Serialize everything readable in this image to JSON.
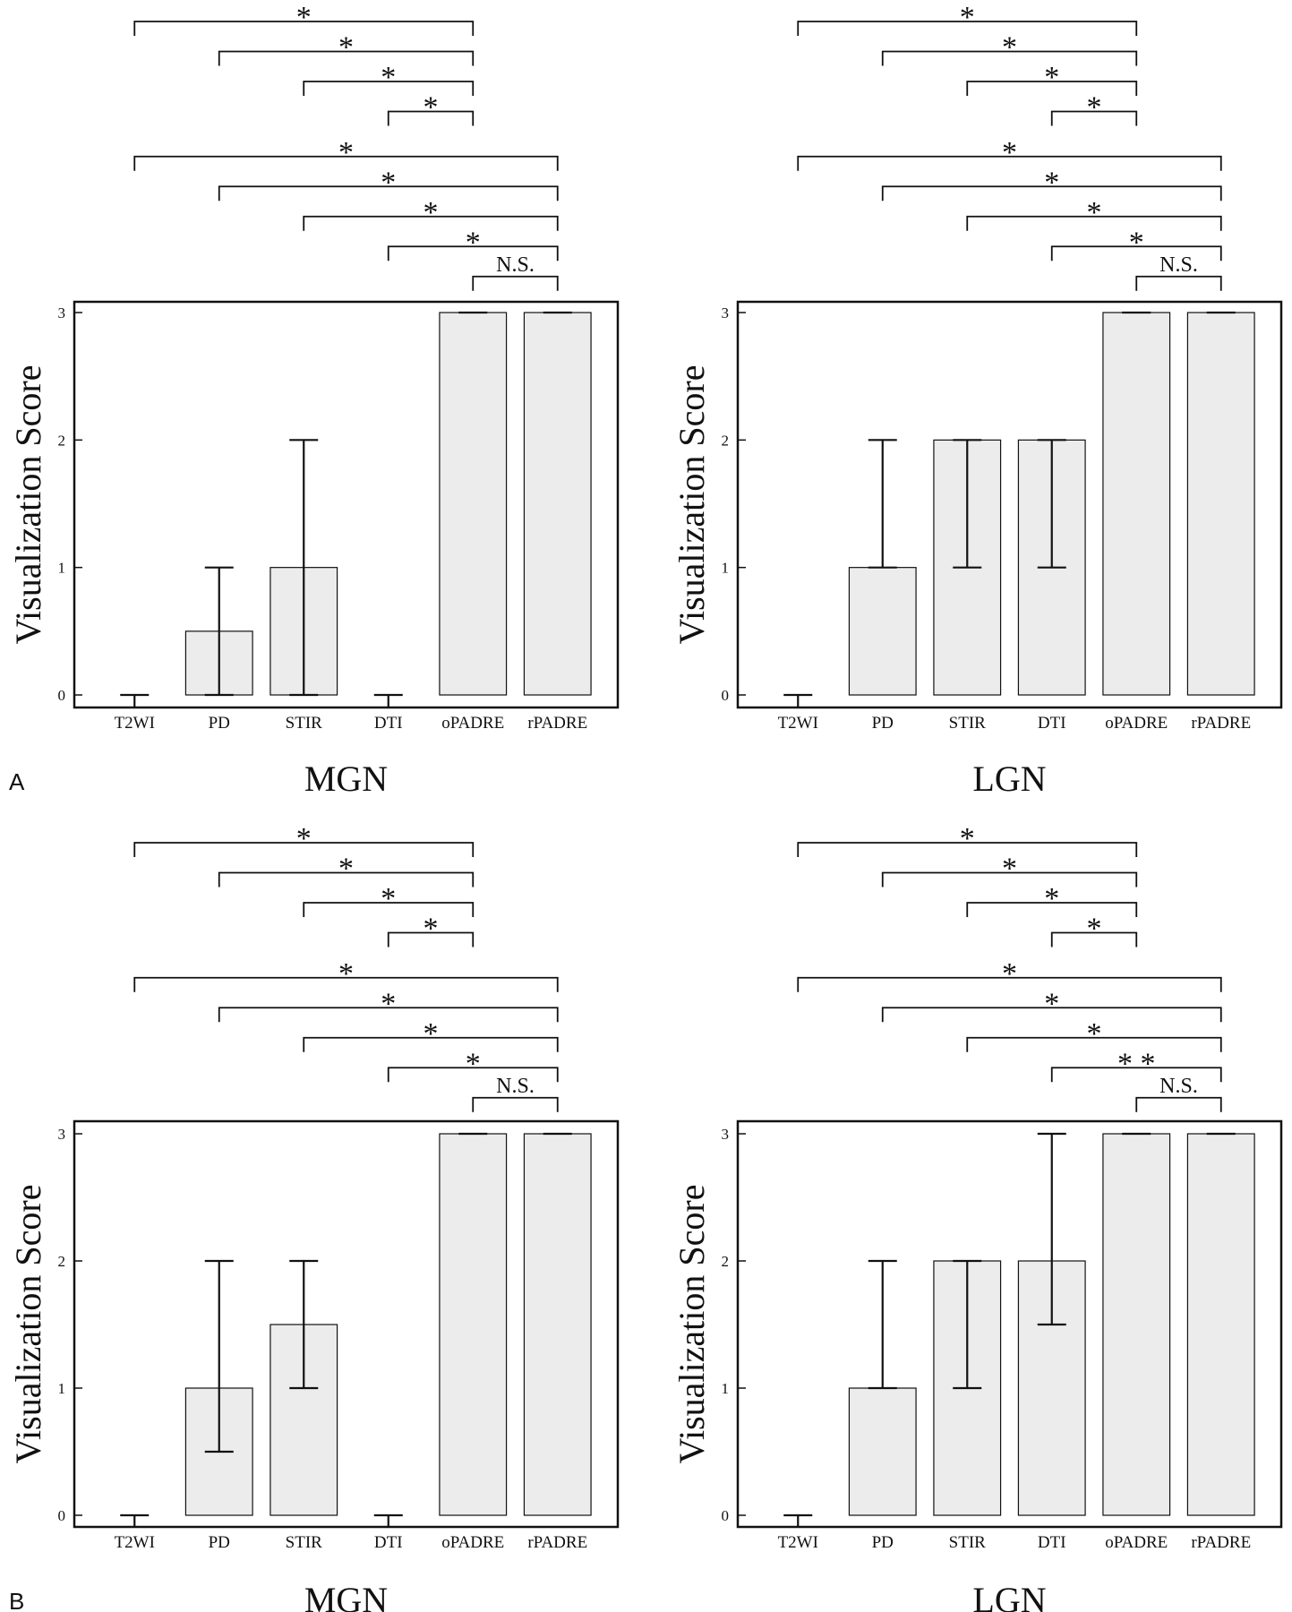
{
  "figure": {
    "panel_letters": [
      "A",
      "B"
    ]
  },
  "chart_data": [
    {
      "type": "bar",
      "title": "MGN",
      "panel": "A",
      "ylabel": "Visualization Score",
      "xlabel": "",
      "categories": [
        "T2WI",
        "PD",
        "STIR",
        "DTI",
        "oPADRE",
        "rPADRE"
      ],
      "values": [
        0,
        0.5,
        1,
        0,
        3,
        3
      ],
      "error_low": [
        0,
        0,
        0,
        0,
        3,
        3
      ],
      "error_high": [
        0,
        1,
        2,
        0,
        3,
        3
      ],
      "ylim": [
        0,
        3
      ],
      "yticks": [
        "0",
        "1",
        "2",
        "3"
      ],
      "grid": false,
      "significance": [
        {
          "from": "T2WI",
          "to": "oPADRE",
          "label": "*"
        },
        {
          "from": "PD",
          "to": "oPADRE",
          "label": "*"
        },
        {
          "from": "STIR",
          "to": "oPADRE",
          "label": "*"
        },
        {
          "from": "DTI",
          "to": "oPADRE",
          "label": "*"
        },
        {
          "from": "T2WI",
          "to": "rPADRE",
          "label": "*"
        },
        {
          "from": "PD",
          "to": "rPADRE",
          "label": "*"
        },
        {
          "from": "STIR",
          "to": "rPADRE",
          "label": "*"
        },
        {
          "from": "DTI",
          "to": "rPADRE",
          "label": "*"
        },
        {
          "from": "oPADRE",
          "to": "rPADRE",
          "label": "N.S."
        }
      ]
    },
    {
      "type": "bar",
      "title": "LGN",
      "panel": "A",
      "ylabel": "Visualization Score",
      "xlabel": "",
      "categories": [
        "T2WI",
        "PD",
        "STIR",
        "DTI",
        "oPADRE",
        "rPADRE"
      ],
      "values": [
        0,
        1,
        2,
        2,
        3,
        3
      ],
      "error_low": [
        0,
        1,
        1,
        1,
        3,
        3
      ],
      "error_high": [
        0,
        2,
        2,
        2,
        3,
        3
      ],
      "ylim": [
        0,
        3
      ],
      "yticks": [
        "0",
        "1",
        "2",
        "3"
      ],
      "grid": false,
      "significance": [
        {
          "from": "T2WI",
          "to": "oPADRE",
          "label": "*"
        },
        {
          "from": "PD",
          "to": "oPADRE",
          "label": "*"
        },
        {
          "from": "STIR",
          "to": "oPADRE",
          "label": "*"
        },
        {
          "from": "DTI",
          "to": "oPADRE",
          "label": "*"
        },
        {
          "from": "T2WI",
          "to": "rPADRE",
          "label": "*"
        },
        {
          "from": "PD",
          "to": "rPADRE",
          "label": "*"
        },
        {
          "from": "STIR",
          "to": "rPADRE",
          "label": "*"
        },
        {
          "from": "DTI",
          "to": "rPADRE",
          "label": "*"
        },
        {
          "from": "oPADRE",
          "to": "rPADRE",
          "label": "N.S."
        }
      ]
    },
    {
      "type": "bar",
      "title": "MGN",
      "panel": "B",
      "ylabel": "Visualization Score",
      "xlabel": "",
      "categories": [
        "T2WI",
        "PD",
        "STIR",
        "DTI",
        "oPADRE",
        "rPADRE"
      ],
      "values": [
        0,
        1,
        1.5,
        0,
        3,
        3
      ],
      "error_low": [
        0,
        0.5,
        1,
        0,
        3,
        3
      ],
      "error_high": [
        0,
        2,
        2,
        0,
        3,
        3
      ],
      "ylim": [
        0,
        3
      ],
      "yticks": [
        "0",
        "1",
        "2",
        "3"
      ],
      "grid": false,
      "significance": [
        {
          "from": "T2WI",
          "to": "oPADRE",
          "label": "*"
        },
        {
          "from": "PD",
          "to": "oPADRE",
          "label": "*"
        },
        {
          "from": "STIR",
          "to": "oPADRE",
          "label": "*"
        },
        {
          "from": "DTI",
          "to": "oPADRE",
          "label": "*"
        },
        {
          "from": "T2WI",
          "to": "rPADRE",
          "label": "*"
        },
        {
          "from": "PD",
          "to": "rPADRE",
          "label": "*"
        },
        {
          "from": "STIR",
          "to": "rPADRE",
          "label": "*"
        },
        {
          "from": "DTI",
          "to": "rPADRE",
          "label": "*"
        },
        {
          "from": "oPADRE",
          "to": "rPADRE",
          "label": "N.S."
        }
      ]
    },
    {
      "type": "bar",
      "title": "LGN",
      "panel": "B",
      "ylabel": "Visualization Score",
      "xlabel": "",
      "categories": [
        "T2WI",
        "PD",
        "STIR",
        "DTI",
        "oPADRE",
        "rPADRE"
      ],
      "values": [
        0,
        1,
        2,
        2,
        3,
        3
      ],
      "error_low": [
        0,
        1,
        1,
        1.5,
        3,
        3
      ],
      "error_high": [
        0,
        2,
        2,
        3,
        3,
        3
      ],
      "ylim": [
        0,
        3
      ],
      "yticks": [
        "0",
        "1",
        "2",
        "3"
      ],
      "grid": false,
      "significance": [
        {
          "from": "T2WI",
          "to": "oPADRE",
          "label": "*"
        },
        {
          "from": "PD",
          "to": "oPADRE",
          "label": "*"
        },
        {
          "from": "STIR",
          "to": "oPADRE",
          "label": "*"
        },
        {
          "from": "DTI",
          "to": "oPADRE",
          "label": "*"
        },
        {
          "from": "T2WI",
          "to": "rPADRE",
          "label": "*"
        },
        {
          "from": "PD",
          "to": "rPADRE",
          "label": "*"
        },
        {
          "from": "STIR",
          "to": "rPADRE",
          "label": "*"
        },
        {
          "from": "DTI",
          "to": "rPADRE",
          "label": "* *"
        },
        {
          "from": "oPADRE",
          "to": "rPADRE",
          "label": "N.S."
        }
      ]
    }
  ],
  "colors": {
    "bar_fill": "#ececec",
    "line": "#111111",
    "background": "#ffffff"
  }
}
